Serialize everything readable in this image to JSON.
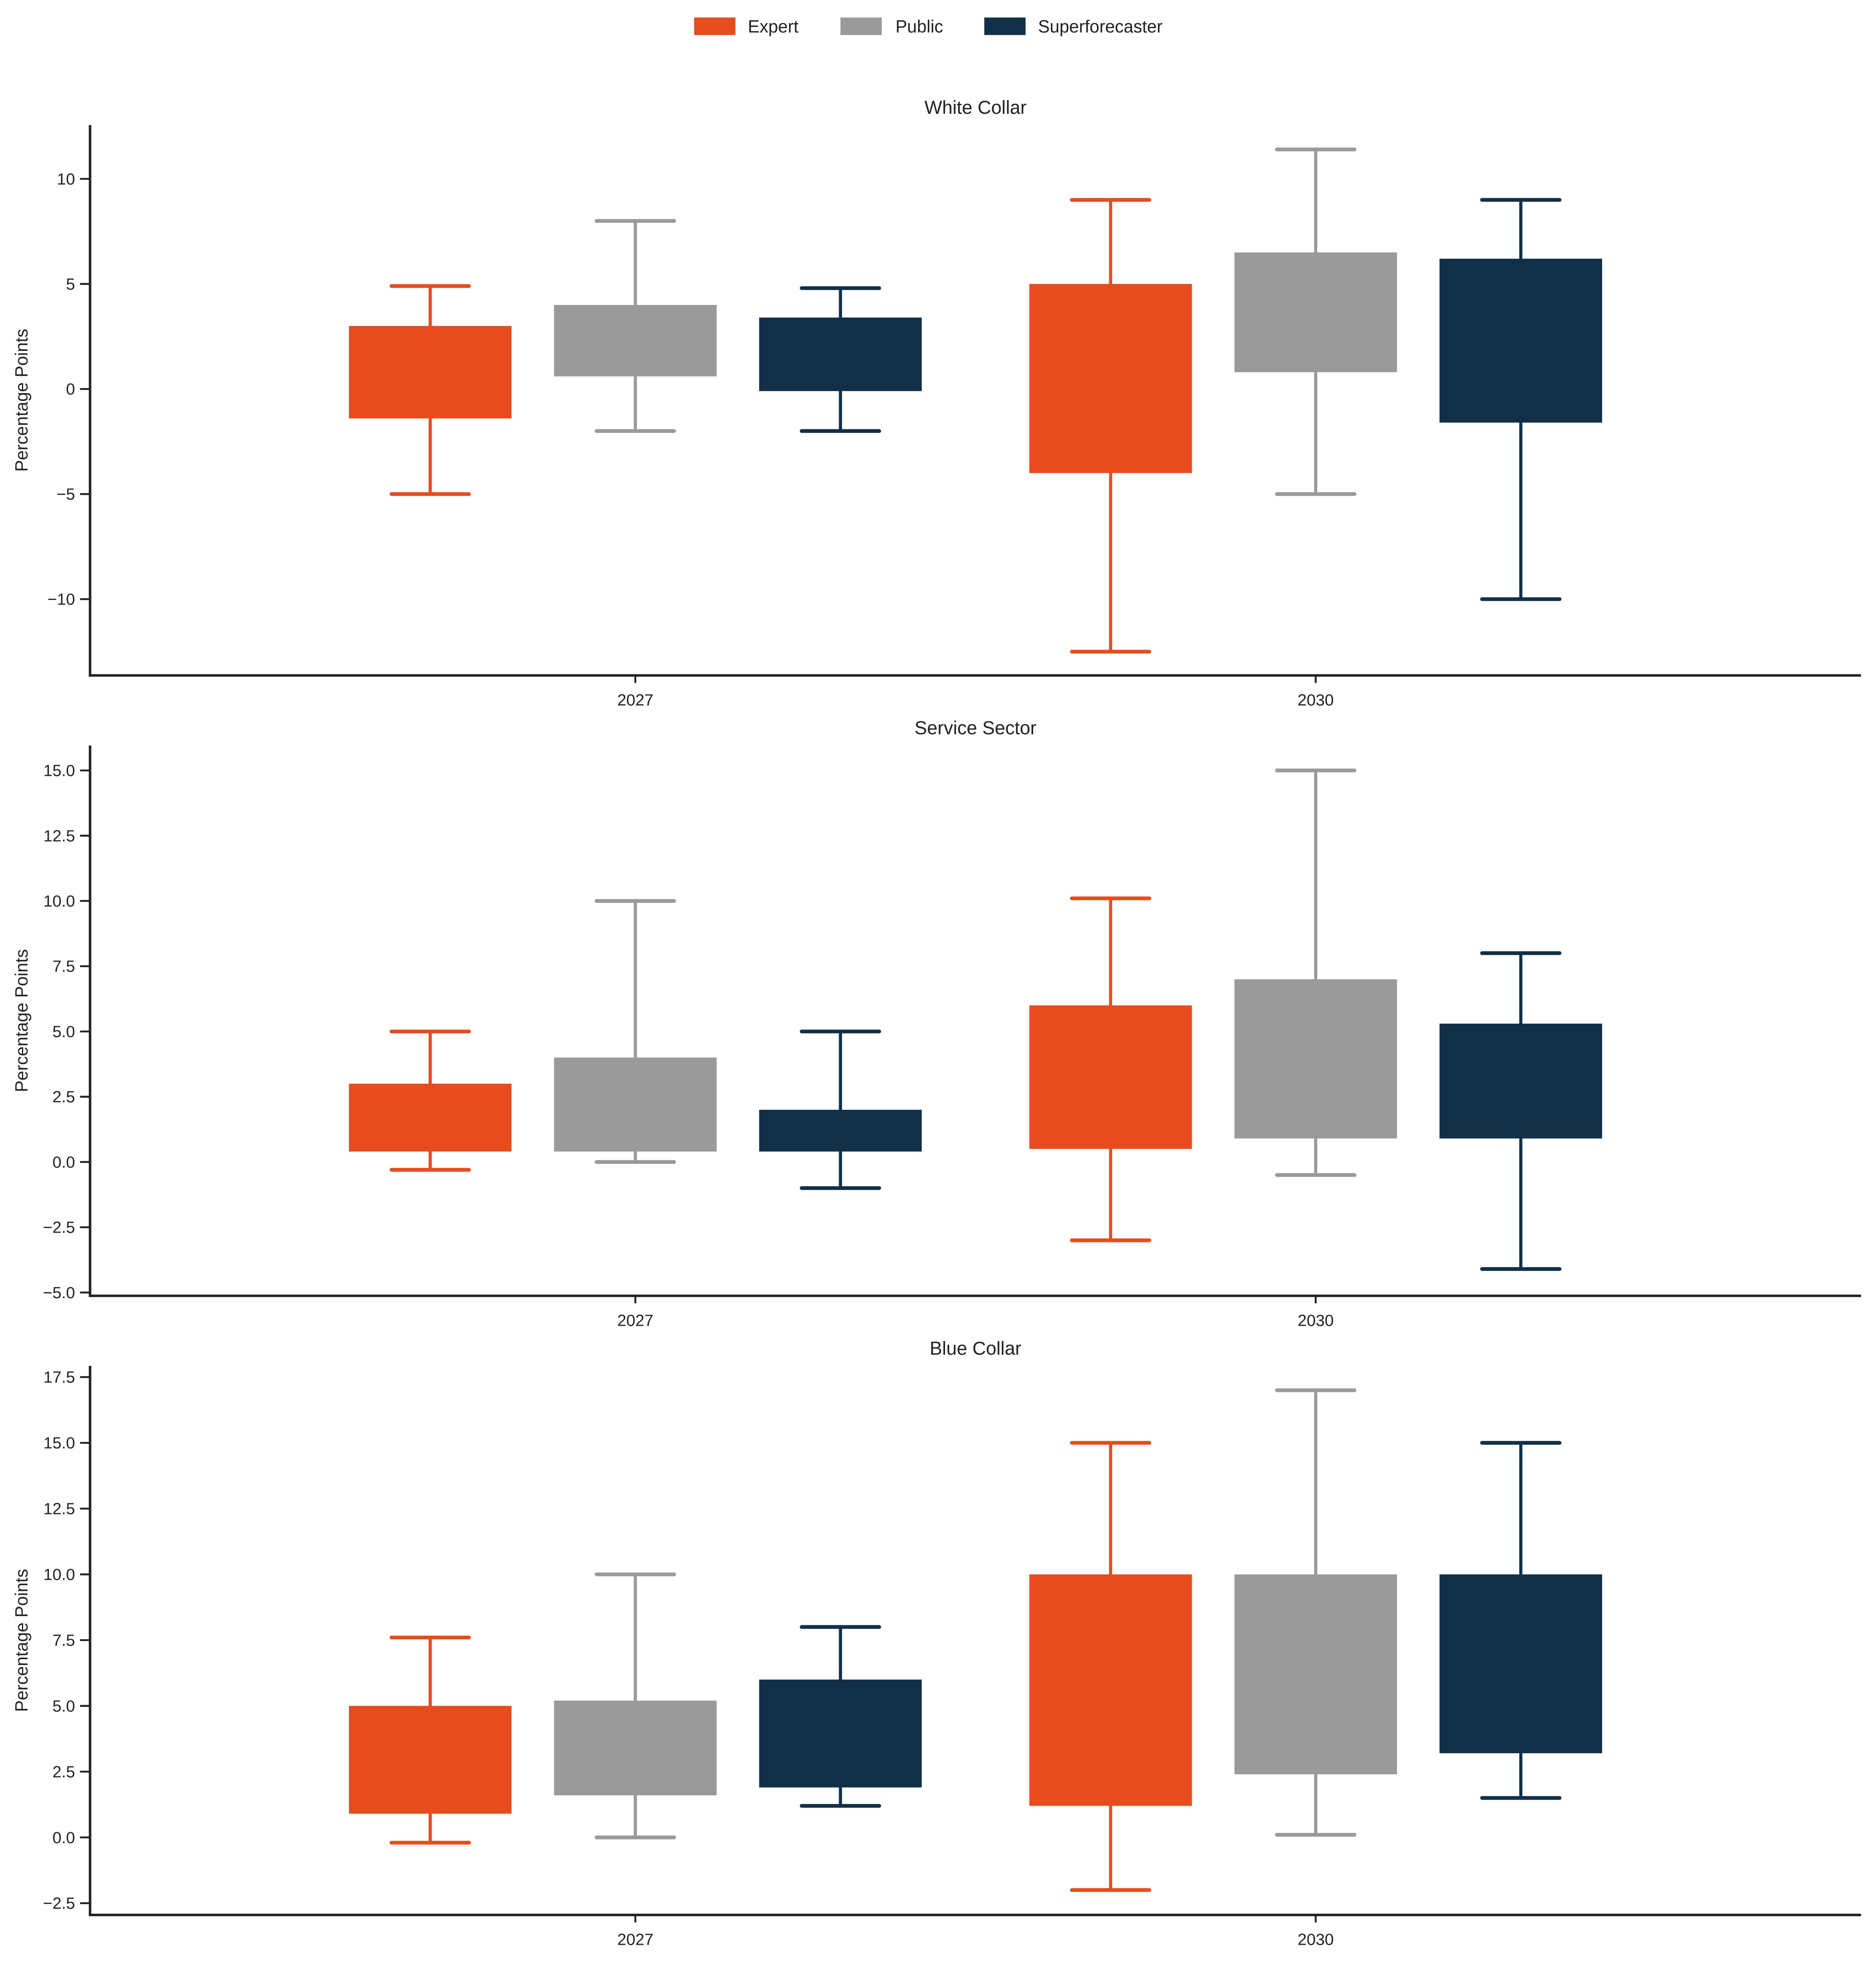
{
  "chart_data": {
    "type": "boxplot",
    "title": "",
    "legend": {
      "position": "top-center",
      "entries": [
        {
          "name": "Expert",
          "color": "#E64C1D"
        },
        {
          "name": "Public",
          "color": "#9A9A9A"
        },
        {
          "name": "Superforecaster",
          "color": "#122F48"
        }
      ]
    },
    "categories": [
      "2027",
      "2030"
    ],
    "series_order": [
      "Expert",
      "Public",
      "Superforecaster"
    ],
    "panels": [
      {
        "title": "White Collar",
        "ylabel": "Percentage Points",
        "xlabel": "",
        "ylim": [
          -13.5,
          12.5
        ],
        "yticks": [
          -10,
          -5,
          0,
          5,
          10
        ],
        "ytick_labels": [
          "−10",
          "−5",
          "0",
          "5",
          "10"
        ],
        "grid": false,
        "data": {
          "2027": {
            "Expert": {
              "whisker_low": -5.0,
              "q1": -1.4,
              "q3": 3.0,
              "whisker_high": 4.9
            },
            "Public": {
              "whisker_low": -2.0,
              "q1": 0.6,
              "q3": 4.0,
              "whisker_high": 8.0
            },
            "Superforecaster": {
              "whisker_low": -2.0,
              "q1": -0.1,
              "q3": 3.4,
              "whisker_high": 4.8
            }
          },
          "2030": {
            "Expert": {
              "whisker_low": -12.5,
              "q1": -4.0,
              "q3": 5.0,
              "whisker_high": 9.0
            },
            "Public": {
              "whisker_low": -5.0,
              "q1": 0.8,
              "q3": 6.5,
              "whisker_high": 11.4
            },
            "Superforecaster": {
              "whisker_low": -10.0,
              "q1": -1.6,
              "q3": 6.2,
              "whisker_high": 9.0
            }
          }
        }
      },
      {
        "title": "Service Sector",
        "ylabel": "Percentage Points",
        "xlabel": "",
        "ylim": [
          -5.0,
          16.0
        ],
        "yticks": [
          -5.0,
          -2.5,
          0.0,
          2.5,
          5.0,
          7.5,
          10.0,
          12.5,
          15.0
        ],
        "ytick_labels": [
          "−5.0",
          "−2.5",
          "0.0",
          "2.5",
          "5.0",
          "7.5",
          "10.0",
          "12.5",
          "15.0"
        ],
        "grid": false,
        "data": {
          "2027": {
            "Expert": {
              "whisker_low": -0.3,
              "q1": 0.4,
              "q3": 3.0,
              "whisker_high": 5.0
            },
            "Public": {
              "whisker_low": 0.0,
              "q1": 0.4,
              "q3": 4.0,
              "whisker_high": 10.0
            },
            "Superforecaster": {
              "whisker_low": -1.0,
              "q1": 0.4,
              "q3": 2.0,
              "whisker_high": 5.0
            }
          },
          "2030": {
            "Expert": {
              "whisker_low": -3.0,
              "q1": 0.5,
              "q3": 6.0,
              "whisker_high": 10.1
            },
            "Public": {
              "whisker_low": -0.5,
              "q1": 0.9,
              "q3": 7.0,
              "whisker_high": 15.0
            },
            "Superforecaster": {
              "whisker_low": -4.1,
              "q1": 0.9,
              "q3": 5.3,
              "whisker_high": 8.0
            }
          }
        }
      },
      {
        "title": "Blue Collar",
        "ylabel": "Percentage Points",
        "xlabel": "",
        "ylim": [
          -2.9,
          18.0
        ],
        "yticks": [
          -2.5,
          0.0,
          2.5,
          5.0,
          7.5,
          10.0,
          12.5,
          15.0,
          17.5
        ],
        "ytick_labels": [
          "−2.5",
          "0.0",
          "2.5",
          "5.0",
          "7.5",
          "10.0",
          "12.5",
          "15.0",
          "17.5"
        ],
        "grid": false,
        "data": {
          "2027": {
            "Expert": {
              "whisker_low": -0.2,
              "q1": 0.9,
              "q3": 5.0,
              "whisker_high": 7.6
            },
            "Public": {
              "whisker_low": 0.0,
              "q1": 1.6,
              "q3": 5.2,
              "whisker_high": 10.0
            },
            "Superforecaster": {
              "whisker_low": 1.2,
              "q1": 1.9,
              "q3": 6.0,
              "whisker_high": 8.0
            }
          },
          "2030": {
            "Expert": {
              "whisker_low": -2.0,
              "q1": 1.2,
              "q3": 10.0,
              "whisker_high": 15.0
            },
            "Public": {
              "whisker_low": 0.1,
              "q1": 2.4,
              "q3": 10.0,
              "whisker_high": 17.0
            },
            "Superforecaster": {
              "whisker_low": 1.5,
              "q1": 3.2,
              "q3": 10.0,
              "whisker_high": 15.0
            }
          }
        }
      }
    ]
  }
}
